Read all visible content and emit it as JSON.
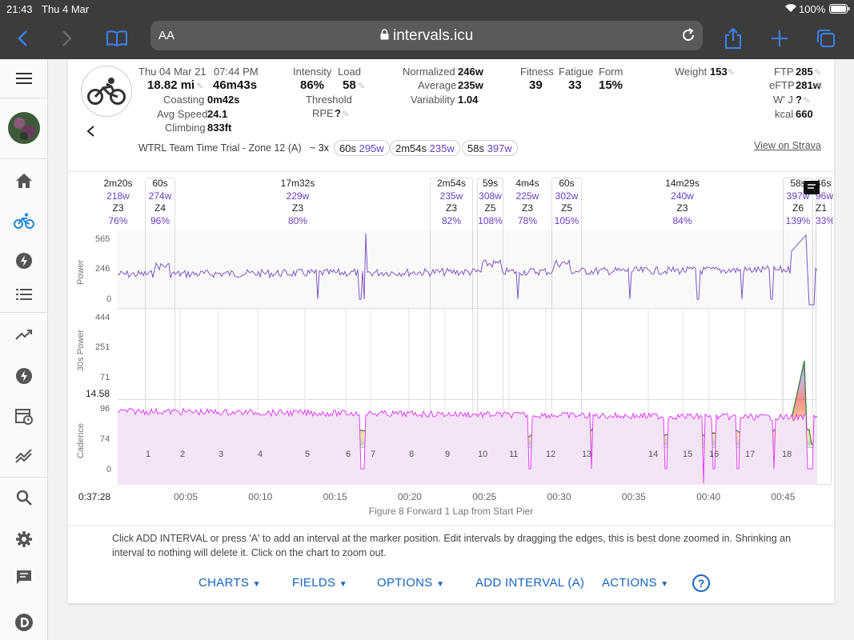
{
  "status": {
    "time": "21:43",
    "date": "Thu 4 Mar",
    "battery": "100%"
  },
  "browser": {
    "url": "intervals.icu",
    "text_size": "AA"
  },
  "sidebar": {
    "items": [
      "menu-icon",
      "avatar",
      "home-icon",
      "cycling-icon",
      "bolt-icon",
      "list-icon",
      "trending-icon",
      "power-icon",
      "calendar-icon",
      "compare-icon",
      "search-icon",
      "settings-icon",
      "chat-icon",
      "logo-icon"
    ]
  },
  "activity": {
    "date": "Thu 04 Mar 21",
    "time": "07:44 PM",
    "distance": "18.82 mi",
    "duration": "46m43s",
    "coasting_label": "Coasting",
    "coasting": "0m42s",
    "avg_speed_label": "Avg Speed",
    "avg_speed": "24.1",
    "climbing_label": "Climbing",
    "climbing": "833ft",
    "intensity_label": "Intensity",
    "intensity": "86%",
    "load_label": "Load",
    "load": "58",
    "threshold_label": "Threshold",
    "rpe_label": "RPE",
    "rpe": "?",
    "normalized_label": "Normalized",
    "normalized": "246w",
    "average_label": "Average",
    "average": "235w",
    "variability_label": "Variability",
    "variability": "1.04",
    "fitness_label": "Fitness",
    "fitness": "39",
    "fatigue_label": "Fatigue",
    "fatigue": "33",
    "form_label": "Form",
    "form": "15%",
    "weight_label": "Weight",
    "weight": "153",
    "ftp_label": "FTP",
    "ftp": "285",
    "eftp_label": "eFTP",
    "eftp": "281w",
    "wj_label": "W' J",
    "wj": "?",
    "kcal_label": "kcal",
    "kcal": "660",
    "name": "WTRL Team Time Trial - Zone 12 (A)",
    "reps_text": "~ 3x",
    "pills": [
      {
        "t": "60s",
        "p": "295w"
      },
      {
        "t": "2m54s",
        "p": "235w"
      },
      {
        "t": "58s",
        "p": "397w"
      }
    ],
    "strava": "View on Strava"
  },
  "intervals": [
    {
      "dur": "2m20s",
      "w": "218w",
      "z": "Z3",
      "pct": "76%"
    },
    {
      "dur": "60s",
      "w": "274w",
      "z": "Z4",
      "pct": "96%"
    },
    {
      "dur": "17m32s",
      "w": "229w",
      "z": "Z3",
      "pct": "80%"
    },
    {
      "dur": "2m54s",
      "w": "235w",
      "z": "Z3",
      "pct": "82%"
    },
    {
      "dur": "59s",
      "w": "308w",
      "z": "Z5",
      "pct": "108%"
    },
    {
      "dur": "4m4s",
      "w": "225w",
      "z": "Z3",
      "pct": "78%"
    },
    {
      "dur": "60s",
      "w": "302w",
      "z": "Z5",
      "pct": "105%"
    },
    {
      "dur": "14m29s",
      "w": "240w",
      "z": "Z3",
      "pct": "84%"
    },
    {
      "dur": "58s",
      "w": "397w",
      "z": "Z6",
      "pct": "139%"
    },
    {
      "dur": "46s",
      "w": "96w",
      "z": "Z1",
      "pct": "33%"
    }
  ],
  "charts": {
    "power": {
      "label": "Power",
      "ticks": [
        "565",
        "246",
        "0"
      ]
    },
    "power30": {
      "label": "30s Power",
      "ticks": [
        "444",
        "251",
        "71"
      ]
    },
    "speed_val": "14.58",
    "laps": [
      "1",
      "2",
      "3",
      "4",
      "5",
      "6",
      "7",
      "8",
      "9",
      "10",
      "11",
      "12",
      "13",
      "14",
      "15",
      "16",
      "17",
      "18"
    ],
    "cadence": {
      "label": "Cadence",
      "ticks": [
        "96",
        "74",
        "0"
      ]
    },
    "start_time": "0:37:28",
    "time_ticks": [
      "00:05",
      "00:10",
      "00:15",
      "00:20",
      "00:25",
      "00:30",
      "00:35",
      "00:40",
      "00:45"
    ],
    "route": "Figure 8 Forward 1 Lap from Start Pier"
  },
  "info_text": "Click ADD INTERVAL or press 'A' to add an interval at the marker position. Edit intervals by dragging the edges, this is best done zoomed in. Shrinking an interval to nothing will delete it. Click on the chart to zoom out.",
  "buttons": {
    "charts": "CHARTS",
    "fields": "FIELDS",
    "options": "OPTIONS",
    "add_interval": "ADD INTERVAL (A)",
    "actions": "ACTIONS",
    "help": "?"
  },
  "colors": {
    "power": "#7e57c2",
    "cadence": "#e040fb",
    "accent": "#1565c0",
    "status_bg": "#3c3c3c"
  }
}
